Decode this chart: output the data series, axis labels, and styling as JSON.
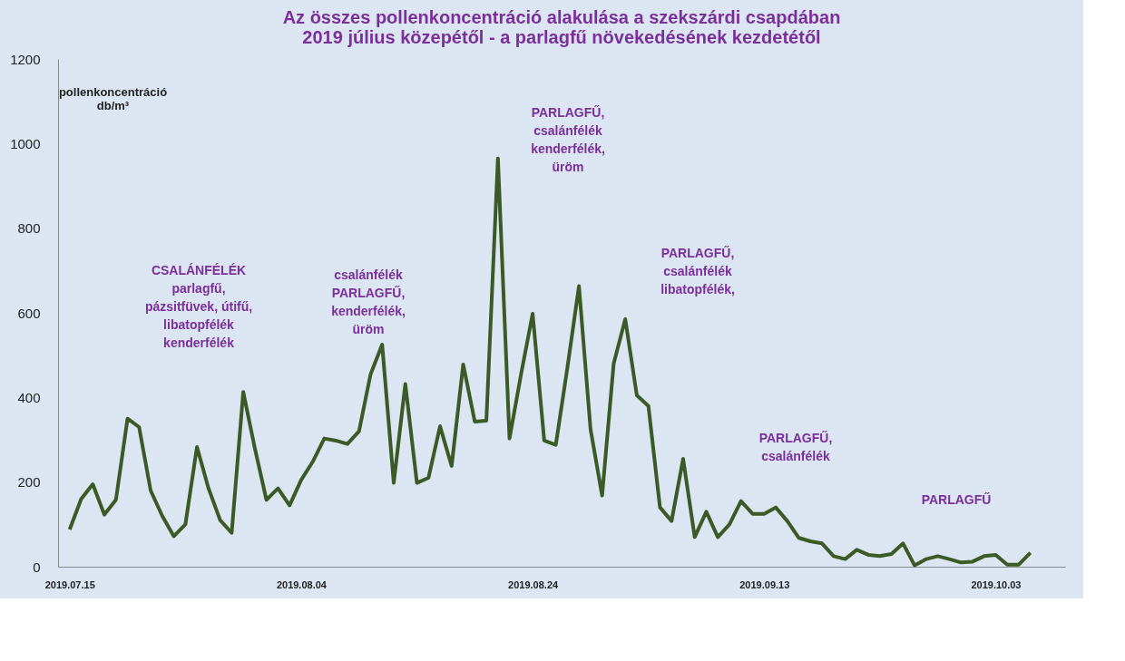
{
  "chart_data": {
    "type": "line",
    "title": "Az összes pollenkoncentráció alakulása a szekszárdi csapdában\n2019 július közepétől - a parlagfű növekedésének kezdetétől",
    "ylabel": "pollenkoncentráció db/m³",
    "x": [
      "2019-07-15",
      "2019-07-16",
      "2019-07-17",
      "2019-07-18",
      "2019-07-19",
      "2019-07-20",
      "2019-07-21",
      "2019-07-22",
      "2019-07-23",
      "2019-07-24",
      "2019-07-25",
      "2019-07-26",
      "2019-07-27",
      "2019-07-28",
      "2019-07-29",
      "2019-07-30",
      "2019-07-31",
      "2019-08-01",
      "2019-08-02",
      "2019-08-03",
      "2019-08-04",
      "2019-08-05",
      "2019-08-06",
      "2019-08-07",
      "2019-08-08",
      "2019-08-09",
      "2019-08-10",
      "2019-08-11",
      "2019-08-12",
      "2019-08-13",
      "2019-08-14",
      "2019-08-15",
      "2019-08-16",
      "2019-08-17",
      "2019-08-18",
      "2019-08-19",
      "2019-08-20",
      "2019-08-21",
      "2019-08-22",
      "2019-08-23",
      "2019-08-24",
      "2019-08-25",
      "2019-08-26",
      "2019-08-27",
      "2019-08-28",
      "2019-08-29",
      "2019-08-30",
      "2019-08-31",
      "2019-09-01",
      "2019-09-02",
      "2019-09-03",
      "2019-09-04",
      "2019-09-05",
      "2019-09-06",
      "2019-09-07",
      "2019-09-08",
      "2019-09-09",
      "2019-09-10",
      "2019-09-11",
      "2019-09-12",
      "2019-09-13",
      "2019-09-14",
      "2019-09-15",
      "2019-09-16",
      "2019-09-17",
      "2019-09-18",
      "2019-09-19",
      "2019-09-20",
      "2019-09-21",
      "2019-09-22",
      "2019-09-23",
      "2019-09-24",
      "2019-09-25",
      "2019-09-26",
      "2019-09-27",
      "2019-09-28",
      "2019-09-29",
      "2019-09-30",
      "2019-10-01",
      "2019-10-02",
      "2019-10-03",
      "2019-10-04",
      "2019-10-05",
      "2019-10-06"
    ],
    "series": [
      {
        "color": "#3b5a26",
        "values": [
          88,
          160,
          195,
          123,
          158,
          350,
          330,
          180,
          120,
          72,
          100,
          283,
          185,
          110,
          80,
          413,
          280,
          158,
          185,
          145,
          205,
          248,
          303,
          298,
          290,
          320,
          455,
          525,
          198,
          432,
          198,
          210,
          332,
          238,
          478,
          343,
          345,
          965,
          303,
          455,
          598,
          298,
          288,
          470,
          663,
          325,
          168,
          480,
          585,
          405,
          380,
          140,
          108,
          255,
          70,
          130,
          70,
          100,
          155,
          125,
          125,
          140,
          108,
          68,
          60,
          55,
          25,
          18,
          40,
          28,
          25,
          30,
          55,
          3,
          18,
          25,
          18,
          10,
          12,
          25,
          28,
          5,
          5,
          33
        ]
      }
    ],
    "xlim": [
      "2019-07-14",
      "2019-10-09"
    ],
    "xticks": [
      {
        "value": "2019-07-15",
        "label": "2019.07.15"
      },
      {
        "value": "2019-08-04",
        "label": "2019.08.04"
      },
      {
        "value": "2019-08-24",
        "label": "2019.08.24"
      },
      {
        "value": "2019-09-13",
        "label": "2019.09.13"
      },
      {
        "value": "2019-10-03",
        "label": "2019.10.03"
      }
    ],
    "ylim": [
      0,
      1200
    ],
    "yticks": [
      0,
      200,
      400,
      600,
      800,
      1000,
      1200
    ],
    "grid": false,
    "marker": "none",
    "line_style": "solid",
    "annotations": [
      "CSALÁNFÉLÉK\nparlagfű,\npázsitfüvek, útifű,\nlibatopfélék\nkenderfélék",
      "csalánfélék\nPARLAGFŰ,\nkenderfélék,\nüröm",
      "PARLAGFŰ,\ncsalánfélék\nkenderfélék,\nüröm",
      "PARLAGFŰ,\ncsalánfélék\nlibatopfélék,",
      "PARLAGFŰ,\ncsalánfélék",
      "PARLAGFŰ"
    ]
  }
}
